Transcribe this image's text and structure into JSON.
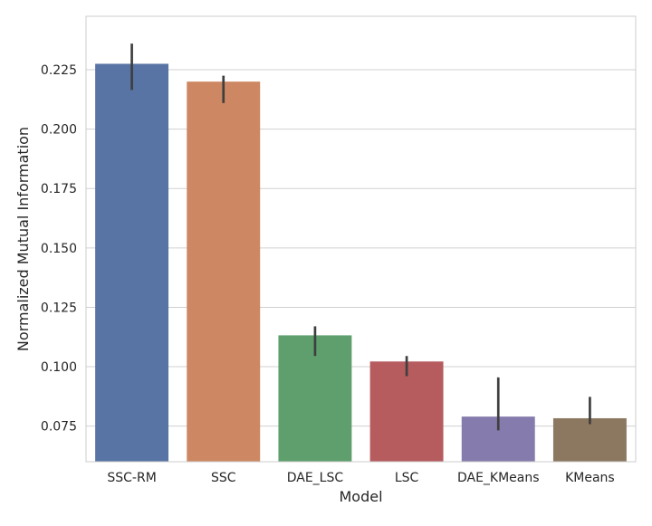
{
  "chart_data": {
    "type": "bar",
    "title": "",
    "xlabel": "Model",
    "ylabel": "Normalized Mutual Information",
    "categories": [
      "SSC-RM",
      "SSC",
      "DAE_LSC",
      "LSC",
      "DAE_KMeans",
      "KMeans"
    ],
    "values": [
      0.2275,
      0.22,
      0.1132,
      0.1022,
      0.079,
      0.0783
    ],
    "error_low": [
      0.2165,
      0.211,
      0.1045,
      0.096,
      0.0732,
      0.0758
    ],
    "error_high": [
      0.236,
      0.2225,
      0.117,
      0.1045,
      0.0955,
      0.0873
    ],
    "colors": [
      "#5874a4",
      "#cd8762",
      "#5f9f6e",
      "#b65c5f",
      "#857bad",
      "#8c7861"
    ],
    "ylim": [
      0.06,
      0.2475
    ],
    "yticks": [
      0.075,
      0.1,
      0.125,
      0.15,
      0.175,
      0.2,
      0.225
    ],
    "ytick_labels": [
      "0.075",
      "0.100",
      "0.125",
      "0.150",
      "0.175",
      "0.200",
      "0.225"
    ],
    "grid": "horizontal",
    "legend": "none"
  }
}
